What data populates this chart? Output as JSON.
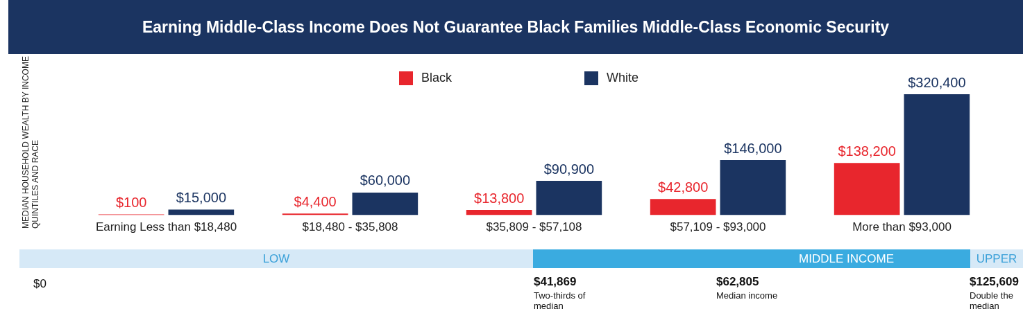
{
  "chart_data": {
    "type": "bar",
    "title": "Earning Middle-Class Income Does Not Guarantee Black Families Middle-Class Economic Security",
    "ylabel": "MEDIAN  HOUSEHOLD WEALTH BY INCOME QUINTILES AND RACE",
    "categories": [
      "Earning Less than $18,480",
      "$18,480 - $35,808",
      "$35,809 - $57,108",
      "$57,109 - $93,000",
      "More than $93,000"
    ],
    "series": [
      {
        "name": "Black",
        "color": "#e8262d",
        "values": [
          100,
          4400,
          13800,
          42800,
          138200
        ],
        "value_labels": [
          "$100",
          "$4,400",
          "$13,800",
          "$42,800",
          "$138,200"
        ]
      },
      {
        "name": "White",
        "color": "#1b3461",
        "values": [
          15000,
          60000,
          90900,
          146000,
          320400
        ],
        "value_labels": [
          "$15,000",
          "$60,000",
          "$90,900",
          "$146,000",
          "$320,400"
        ]
      }
    ],
    "legend": "top",
    "grid": false,
    "annotations": [
      "LOW",
      "MIDDLE INCOME",
      "UPPER",
      "$0",
      "$41,869",
      "Two-thirds of median",
      "$62,805",
      "Median income",
      "$125,609",
      "Double the median"
    ]
  }
}
